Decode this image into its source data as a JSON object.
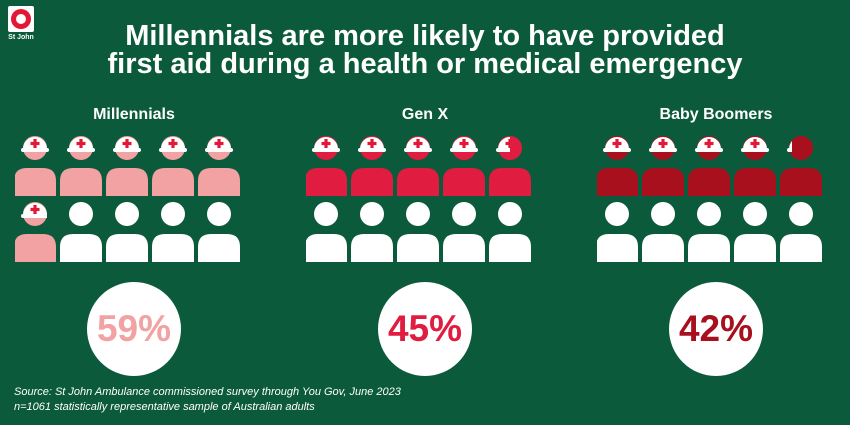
{
  "logo": {
    "text": "St John"
  },
  "title_line1": "Millennials are more likely to have provided",
  "title_line2": "first aid during a health or medical emergency",
  "chart_data": {
    "type": "pictogram",
    "icons_per_group": 10,
    "groups": [
      {
        "name": "Millennials",
        "value": 59,
        "label": "59%",
        "color": "#f2a2a2",
        "text_color": "#f2a2a2"
      },
      {
        "name": "Gen X",
        "value": 45,
        "label": "45%",
        "color": "#e01c40",
        "text_color": "#e01c40"
      },
      {
        "name": "Baby Boomers",
        "value": 42,
        "label": "42%",
        "color": "#a8101e",
        "text_color": "#a8101e"
      }
    ]
  },
  "source_line1": "Source: St John Ambulance commissioned survey through You Gov, June 2023",
  "source_line2": "n=1061 statistically representative sample of Australian adults"
}
